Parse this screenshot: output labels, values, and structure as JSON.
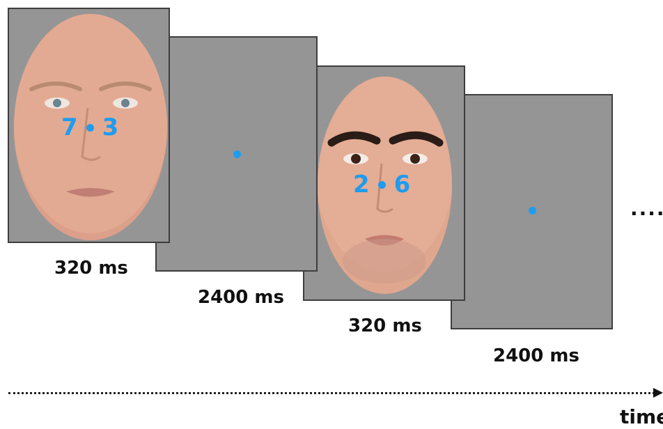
{
  "sequence": [
    {
      "type": "face",
      "left_digit": "7",
      "right_digit": "3",
      "duration": "320 ms"
    },
    {
      "type": "fixation",
      "duration": "2400 ms"
    },
    {
      "type": "face",
      "left_digit": "2",
      "right_digit": "6",
      "duration": "320 ms"
    },
    {
      "type": "fixation",
      "duration": "2400 ms"
    }
  ],
  "continuation": ".....",
  "axis_label": "time",
  "colors": {
    "frame_gray": "#959595",
    "frame_border": "#3d3d3d",
    "stimulus_blue": "#1e9cf0",
    "skin": "#e4ab93",
    "text": "#111111"
  }
}
